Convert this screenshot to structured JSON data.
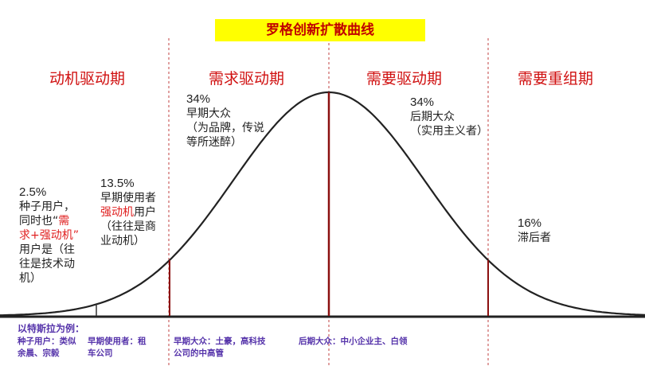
{
  "title": "罗格创新扩散曲线",
  "phases": [
    "动机驱动期",
    "需求驱动期",
    "需要驱动期",
    "需要重组期"
  ],
  "segments": [
    {
      "percent": "2.5%",
      "lines": [
        "种子用户，",
        "同时也“",
        "需",
        "求+强动机”",
        "用户是（往",
        "往是技术动",
        "机）"
      ]
    },
    {
      "percent": "13.5%",
      "lines": [
        "早期使用者",
        "强动机",
        "用户",
        "（往往是商",
        "业动机）"
      ]
    },
    {
      "percent": "34%",
      "lines": [
        "早期大众",
        "（为品牌，传说",
        "等所迷醉）"
      ]
    },
    {
      "percent": "34%",
      "lines": [
        "后期大众",
        "（实用主义者）"
      ]
    },
    {
      "percent": "16%",
      "lines": [
        "滞后者"
      ]
    }
  ],
  "example": {
    "heading": "以特斯拉为例：",
    "items": [
      "种子用户：类似",
      "余晨、宗毅",
      "早期使用者：租",
      "车公司",
      "早期大众：土豪，高科技",
      "公司的中高管",
      "后期大众：中小企业主、白领"
    ]
  },
  "colors": {
    "title_bg": "#ffff00",
    "accent": "#d01010",
    "example_text": "#5533aa"
  }
}
